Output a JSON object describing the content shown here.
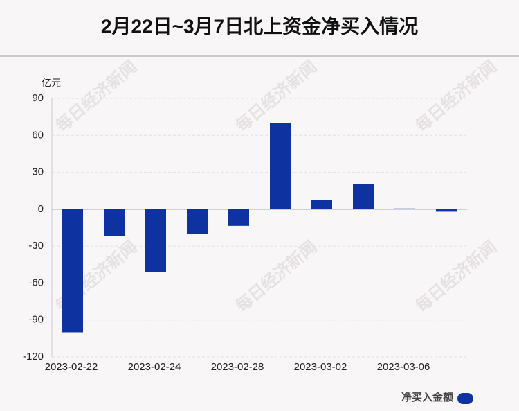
{
  "chart_data": {
    "type": "bar",
    "title": "2月22日~3月7日北上资金净买入情况",
    "y_unit": "亿元",
    "watermark": "每日经济新闻",
    "categories": [
      "2023-02-22",
      null,
      "2023-02-24",
      null,
      "2023-02-28",
      null,
      "2023-03-02",
      null,
      "2023-03-06",
      null
    ],
    "series": [
      {
        "name": "净买入金额",
        "color": "#0e33a0",
        "values": [
          -100,
          -22,
          -51,
          -20,
          -13.5,
          70,
          7.3,
          20.2,
          0.6,
          -2
        ]
      }
    ],
    "ylim": [
      -120,
      90
    ],
    "yticks": [
      90,
      60,
      30,
      0,
      -30,
      -60,
      -90,
      -120
    ],
    "grid": true
  }
}
